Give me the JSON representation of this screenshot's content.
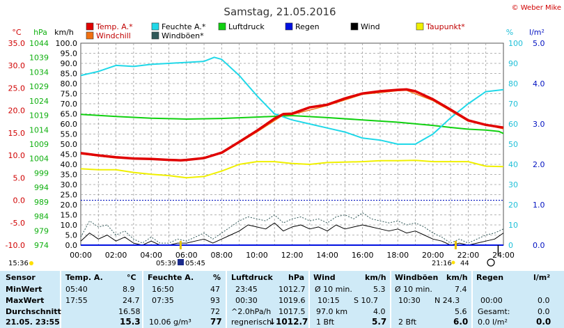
{
  "header": {
    "title": "Samstag, 21.05.2016",
    "copyright": "© Weber Mike"
  },
  "legend": [
    {
      "label": "Temp. A.*",
      "color": "#e00000"
    },
    {
      "label": "Feuchte A.*",
      "color": "#20d8e8"
    },
    {
      "label": "Luftdruck",
      "color": "#10d010"
    },
    {
      "label": "Regen",
      "color": "#0010e0"
    },
    {
      "label": "Wind",
      "color": "#000000"
    },
    {
      "label": "Taupunkt*",
      "color": "#f0f000"
    },
    {
      "label": "Windchill",
      "color": "#f07010"
    },
    {
      "label": "Windböen*",
      "color": "#305858"
    }
  ],
  "axes_units": {
    "temp": "°C",
    "pressure": "hPa",
    "wind": "km/h",
    "humidity": "%",
    "rain": "l/m²"
  },
  "chart_data": {
    "type": "line",
    "x_labels": [
      "00:00",
      "02:00",
      "04:00",
      "06:00",
      "08:00",
      "10:00",
      "12:00",
      "14:00",
      "16:00",
      "18:00",
      "20:00",
      "22:00",
      "24:00"
    ],
    "axes": {
      "temp_ticks": [
        "35.0",
        "30.0",
        "25.0",
        "20.0",
        "15.0",
        "10.0",
        "5.0",
        "0.0",
        "-5.0",
        "-10.0"
      ],
      "pressure_ticks": [
        "1044",
        "1039",
        "1034",
        "1029",
        "1024",
        "1019",
        "1014",
        "1009",
        "1004",
        "999",
        "994",
        "989",
        "984",
        "979",
        "974"
      ],
      "wind_ticks": [
        "100.0",
        "95.0",
        "90.0",
        "85.0",
        "80.0",
        "75.0",
        "70.0",
        "65.0",
        "60.0",
        "55.0",
        "50.0",
        "45.0",
        "40.0",
        "35.0",
        "30.0",
        "25.0",
        "20.0",
        "15.0",
        "10.0",
        "5.0",
        "0.0"
      ],
      "humidity_ticks": [
        "100",
        "90",
        "80",
        "70",
        "60",
        "50",
        "40",
        "30",
        "20",
        "10",
        "0"
      ],
      "rain_ticks": [
        "5.0",
        "4.0",
        "3.0",
        "2.0",
        "1.0",
        "0.0"
      ],
      "temp_range": [
        -10,
        35
      ],
      "pressure_range": [
        974,
        1044
      ],
      "wind_range": [
        0,
        100
      ],
      "humidity_range": [
        0,
        100
      ],
      "rain_range": [
        0,
        5
      ]
    },
    "series": [
      {
        "name": "Temp. A.*",
        "axis": "temp",
        "color": "#e00000",
        "x": [
          0,
          1,
          2,
          3,
          4,
          5,
          5.67,
          6,
          7,
          8,
          9,
          10,
          11,
          11.5,
          12,
          13,
          14,
          15,
          16,
          17,
          18,
          18.5,
          19,
          20,
          21,
          22,
          23,
          24
        ],
        "values": [
          10.5,
          10,
          9.6,
          9.3,
          9.2,
          9.0,
          8.9,
          9.0,
          9.4,
          10.6,
          13,
          15.5,
          18.2,
          19.2,
          19.3,
          20.7,
          21.3,
          22.7,
          23.8,
          24.3,
          24.6,
          24.7,
          24.3,
          22.5,
          20.2,
          17.8,
          16.8,
          16.2
        ]
      },
      {
        "name": "Feuchte A.*",
        "axis": "humidity",
        "color": "#20d8e8",
        "x": [
          0,
          1,
          2,
          3,
          4,
          5,
          6,
          7,
          7.58,
          8,
          9,
          10,
          11,
          12,
          13,
          14,
          15,
          16,
          17,
          18,
          19,
          20,
          21,
          22,
          23,
          24
        ],
        "values": [
          84,
          86,
          89,
          88.5,
          89.5,
          90,
          90.5,
          91,
          93,
          92,
          84,
          74,
          65,
          62,
          60,
          58,
          56,
          53,
          52,
          50,
          50,
          55,
          63,
          70,
          76,
          77
        ]
      },
      {
        "name": "Luftdruck",
        "axis": "pressure",
        "color": "#10d010",
        "x": [
          0,
          2,
          4,
          6,
          8,
          10,
          12,
          14,
          16,
          18,
          20,
          21,
          22,
          23,
          23.75,
          24
        ],
        "values": [
          1019.3,
          1018.6,
          1018.0,
          1017.7,
          1017.9,
          1018.4,
          1018.9,
          1018.2,
          1017.4,
          1016.6,
          1015.5,
          1014.8,
          1014.2,
          1013.9,
          1013.4,
          1012.7
        ]
      },
      {
        "name": "Taupunkt*",
        "axis": "temp",
        "color": "#f0f000",
        "x": [
          0,
          1,
          2,
          3,
          4,
          5,
          6,
          7,
          8,
          9,
          10,
          11,
          12,
          13,
          14,
          15,
          16,
          17,
          18,
          19,
          20,
          21,
          22,
          23,
          24
        ],
        "values": [
          7.0,
          6.8,
          6.8,
          6.2,
          5.8,
          5.5,
          5.0,
          5.3,
          6.5,
          8.0,
          8.6,
          8.6,
          8.2,
          8.0,
          8.4,
          8.5,
          8.6,
          8.8,
          8.8,
          8.9,
          8.6,
          8.6,
          8.6,
          7.6,
          7.5
        ]
      },
      {
        "name": "Windchill",
        "axis": "temp",
        "color": "#f07010",
        "x": [
          0,
          2,
          4,
          6,
          8,
          10,
          11.5,
          12,
          14,
          16,
          18,
          18.5,
          20,
          22,
          24
        ],
        "values": [
          10.3,
          9.4,
          9.1,
          8.8,
          10.4,
          15.2,
          19.0,
          19.1,
          21.1,
          23.6,
          24.4,
          24.5,
          22.2,
          17.6,
          15.9
        ]
      },
      {
        "name": "Wind",
        "axis": "wind",
        "color": "#000000",
        "x": [
          0,
          0.5,
          1,
          1.5,
          2,
          2.5,
          3,
          3.5,
          4,
          4.5,
          5,
          5.5,
          6,
          6.5,
          7,
          7.5,
          8,
          8.5,
          9,
          9.5,
          10,
          10.5,
          11,
          11.5,
          12,
          12.5,
          13,
          13.5,
          14,
          14.5,
          15,
          15.5,
          16,
          16.5,
          17,
          17.5,
          18,
          18.5,
          19,
          19.5,
          20,
          20.5,
          21,
          21.5,
          22,
          22.5,
          23,
          23.5,
          24
        ],
        "values": [
          2,
          6,
          3,
          5,
          2,
          4,
          1,
          0,
          2,
          0,
          0,
          1,
          1,
          2,
          3,
          1,
          3,
          5,
          7,
          10,
          9,
          8,
          11,
          7,
          9,
          10,
          8,
          9,
          7,
          10,
          8,
          9,
          10,
          9,
          8,
          7,
          8,
          6,
          7,
          5,
          3,
          2,
          0,
          1,
          0,
          1,
          2,
          3,
          6
        ]
      },
      {
        "name": "Windböen*",
        "axis": "wind",
        "color": "#305858",
        "x": [
          0,
          0.5,
          1,
          1.5,
          2,
          2.5,
          3,
          3.5,
          4,
          4.5,
          5,
          5.5,
          6,
          6.5,
          7,
          7.5,
          8,
          8.5,
          9,
          9.5,
          10,
          10.5,
          11,
          11.5,
          12,
          12.5,
          13,
          13.5,
          14,
          14.5,
          15,
          15.5,
          16,
          16.5,
          17,
          17.5,
          18,
          18.5,
          19,
          19.5,
          20,
          20.5,
          21,
          21.5,
          22,
          22.5,
          23,
          23.5,
          24
        ],
        "values": [
          4,
          12,
          9,
          10,
          5,
          7,
          3,
          1,
          4,
          1,
          1,
          3,
          2,
          4,
          6,
          3,
          6,
          9,
          12,
          14,
          13,
          12,
          15,
          11,
          13,
          14,
          12,
          13,
          11,
          14,
          15,
          13,
          16,
          13,
          12,
          11,
          12,
          10,
          11,
          9,
          6,
          4,
          1,
          3,
          1,
          3,
          5,
          6,
          8
        ]
      },
      {
        "name": "Regen",
        "axis": "rain",
        "color": "#0010e0",
        "x": [
          0,
          24
        ],
        "values": [
          0,
          0
        ]
      }
    ],
    "grid": true
  },
  "below_axis": {
    "left_time": "15:36",
    "sunrise": "05:39",
    "sunset_label": "05:45",
    "right_time": "21:16",
    "moon": "44"
  },
  "table": {
    "headers": {
      "sensor": "Sensor",
      "temp": "Temp. A.",
      "temp_unit": "°C",
      "humidity": "Feuchte A.",
      "humidity_unit": "%",
      "pressure": "Luftdruck",
      "pressure_unit": "hPa",
      "wind": "Wind",
      "wind_unit": "km/h",
      "gust": "Windböen",
      "gust_unit": "km/h",
      "rain": "Regen",
      "rain_unit": "l/m²"
    },
    "rows": [
      {
        "label": "MinWert",
        "temp_time": "05:40",
        "temp": "8.9",
        "hum_time": "16:50",
        "hum": "47",
        "pres_time": "23:45",
        "pres": "1012.7",
        "wind_label": "Ø 10 min.",
        "wind": "5.3",
        "gust_label": "Ø 10 min.",
        "gust": "7.4",
        "rain_label": "",
        "rain": ""
      },
      {
        "label": "MaxWert",
        "temp_time": "17:55",
        "temp": "24.7",
        "hum_time": "07:35",
        "hum": "93",
        "pres_time": "00:30",
        "pres": "1019.6",
        "wind_time": "10:15",
        "wind_label": "S 10.7",
        "wind": "",
        "gust_time": "10:30",
        "gust_label": "N 24.3",
        "gust": "",
        "rain_label": "00:00",
        "rain": "0.0"
      },
      {
        "label": "Durchschnitt",
        "temp_time": "",
        "temp": "16.58",
        "hum_time": "",
        "hum": "72",
        "pres_time": "^2.0hPa/h",
        "pres": "1017.5",
        "wind_label": "97.0 km",
        "wind": "4.0",
        "gust_label": "",
        "gust": "5.6",
        "rain_label": "Gesamt:",
        "rain": "0.0"
      },
      {
        "label": "21.05. 23:55",
        "temp_time": "",
        "temp": "15.3",
        "hum_time": "10.06 g/m³",
        "hum": "77",
        "pres_time": "regnerisch",
        "pres": "↓1012.7",
        "wind_label": "1 Bft",
        "wind": "5.7",
        "gust_label": "2 Bft",
        "gust": "6.0",
        "rain_label": "0.0 l/m²",
        "rain": "0.0"
      }
    ]
  }
}
